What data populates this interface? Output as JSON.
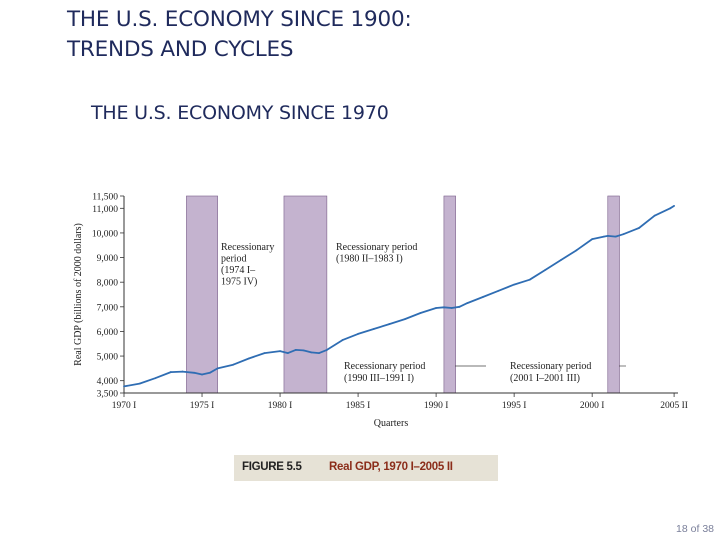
{
  "slide": {
    "title_line1": "THE U.S. ECONOMY SINCE 1900:",
    "title_line2": "TRENDS AND CYCLES",
    "subtitle": "THE U.S. ECONOMY SINCE 1970",
    "page_number": "18 of 38"
  },
  "figure": {
    "label": "FIGURE 5.5",
    "caption": "Real GDP, 1970 I–2005 II"
  },
  "colors": {
    "recession_fill": "#c4b3cf",
    "recession_stroke": "#7a5f8a",
    "line": "#2f6db3",
    "axis": "#333333"
  },
  "chart_data": {
    "type": "line",
    "title": "THE U.S. ECONOMY SINCE 1970",
    "xlabel": "Quarters",
    "ylabel": "Real GDP (billions of 2000 dollars)",
    "xlim": [
      1970.0,
      2005.5
    ],
    "ylim": [
      3500,
      11500
    ],
    "x_ticks": [
      {
        "label": "1970 I",
        "value": 1970.0
      },
      {
        "label": "1975 I",
        "value": 1975.0
      },
      {
        "label": "1980 I",
        "value": 1980.0
      },
      {
        "label": "1985 I",
        "value": 1985.0
      },
      {
        "label": "1990 I",
        "value": 1990.0
      },
      {
        "label": "1995 I",
        "value": 1995.0
      },
      {
        "label": "2000 I",
        "value": 2000.0
      },
      {
        "label": "2005 II",
        "value": 2005.25
      }
    ],
    "y_ticks": [
      {
        "label": "3,500",
        "value": 3500
      },
      {
        "label": "4,000",
        "value": 4000
      },
      {
        "label": "5,000",
        "value": 5000
      },
      {
        "label": "6,000",
        "value": 6000
      },
      {
        "label": "7,000",
        "value": 7000
      },
      {
        "label": "8,000",
        "value": 8000
      },
      {
        "label": "9,000",
        "value": 9000
      },
      {
        "label": "10,000",
        "value": 10000
      },
      {
        "label": "11,000",
        "value": 11000
      },
      {
        "label": "11,500",
        "value": 11500
      }
    ],
    "recessions": [
      {
        "start": 1974.0,
        "end": 1976.0,
        "label_lines": [
          "Recessionary",
          "period",
          "(1974 I–",
          "1975 IV)"
        ]
      },
      {
        "start": 1980.25,
        "end": 1983.0,
        "label_lines": [
          "Recessionary period",
          "(1980 II–1983 I)"
        ]
      },
      {
        "start": 1990.5,
        "end": 1991.25,
        "label_lines": [
          "Recessionary period",
          "(1990 III–1991 I)"
        ]
      },
      {
        "start": 2001.0,
        "end": 2001.75,
        "label_lines": [
          "Recessionary period",
          "(2001 I–2001 III)"
        ]
      }
    ],
    "series": [
      {
        "name": "Real GDP",
        "x": [
          1970.0,
          1971.0,
          1972.0,
          1973.0,
          1973.75,
          1974.5,
          1975.0,
          1975.5,
          1976.0,
          1977.0,
          1978.0,
          1979.0,
          1980.0,
          1980.5,
          1981.0,
          1981.5,
          1982.0,
          1982.5,
          1983.0,
          1984.0,
          1985.0,
          1986.0,
          1987.0,
          1988.0,
          1989.0,
          1990.0,
          1990.5,
          1991.0,
          1991.5,
          1992.0,
          1993.0,
          1994.0,
          1995.0,
          1996.0,
          1997.0,
          1998.0,
          1999.0,
          2000.0,
          2000.75,
          2001.0,
          2001.5,
          2002.0,
          2003.0,
          2004.0,
          2005.0,
          2005.25
        ],
        "values": [
          3770,
          3880,
          4100,
          4350,
          4370,
          4320,
          4250,
          4320,
          4500,
          4650,
          4900,
          5120,
          5200,
          5120,
          5250,
          5230,
          5150,
          5120,
          5250,
          5650,
          5900,
          6100,
          6300,
          6500,
          6750,
          6950,
          6980,
          6950,
          7000,
          7150,
          7400,
          7650,
          7900,
          8100,
          8500,
          8900,
          9300,
          9750,
          9850,
          9880,
          9850,
          9950,
          10200,
          10700,
          11000,
          11100
        ]
      }
    ]
  }
}
